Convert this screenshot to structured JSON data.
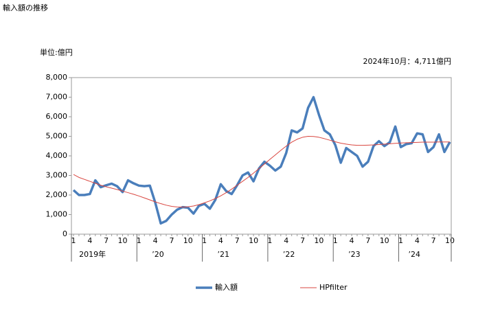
{
  "chart_data": {
    "type": "line",
    "title": "輸入額の推移",
    "unit_label": "単位:億円",
    "annotation": "2024年10月：4,711億円",
    "categories": [
      "1",
      null,
      null,
      "4",
      null,
      null,
      "7",
      null,
      null,
      "10",
      null,
      null,
      "1",
      null,
      null,
      "4",
      null,
      null,
      "7",
      null,
      null,
      "10",
      null,
      null,
      "1",
      null,
      null,
      "4",
      null,
      null,
      "7",
      null,
      null,
      "10",
      null,
      null,
      "1",
      null,
      null,
      "4",
      null,
      null,
      "7",
      null,
      null,
      "10",
      null,
      null,
      "1",
      null,
      null,
      "4",
      null,
      null,
      "7",
      null,
      null,
      "10",
      null,
      null,
      "1",
      null,
      null,
      "4",
      null,
      null,
      "7",
      null,
      null,
      "10"
    ],
    "years": [
      "2019年",
      "’20",
      "’21",
      "’22",
      "’23",
      "’24"
    ],
    "ylim": [
      0,
      8000
    ],
    "yticks": [
      0,
      {
        "value": 1000,
        "label": "1,000"
      },
      {
        "value": 2000,
        "label": "2,000"
      },
      {
        "value": 3000,
        "label": "3,000"
      },
      {
        "value": 4000,
        "label": "4,000"
      },
      {
        "value": 5000,
        "label": "5,000"
      },
      {
        "value": 6000,
        "label": "6,000"
      },
      {
        "value": 7000,
        "label": "7,000"
      },
      {
        "value": 8000,
        "label": "8,000"
      }
    ],
    "series": [
      {
        "name": "輸入額",
        "color": "#4a7ebb",
        "width": 3.5,
        "values": [
          2250,
          2000,
          2000,
          2050,
          2750,
          2400,
          2500,
          2580,
          2450,
          2150,
          2750,
          2600,
          2480,
          2450,
          2480,
          1600,
          550,
          680,
          1000,
          1250,
          1380,
          1350,
          1050,
          1450,
          1550,
          1300,
          1750,
          2550,
          2200,
          2050,
          2500,
          3000,
          3150,
          2700,
          3350,
          3700,
          3500,
          3250,
          3450,
          4150,
          5300,
          5200,
          5400,
          6450,
          7000,
          6100,
          5300,
          5100,
          4550,
          3650,
          4400,
          4200,
          4000,
          3450,
          3700,
          4500,
          4750,
          4500,
          4700,
          5500,
          4450,
          4600,
          4650,
          5150,
          5100,
          4200,
          4450,
          5100,
          4200,
          4711
        ]
      },
      {
        "name": "HPfilter",
        "color": "#d9453f",
        "width": 1,
        "values": [
          3050,
          2900,
          2800,
          2700,
          2600,
          2500,
          2420,
          2350,
          2280,
          2200,
          2120,
          2040,
          1950,
          1850,
          1750,
          1650,
          1560,
          1480,
          1420,
          1390,
          1380,
          1400,
          1440,
          1510,
          1600,
          1700,
          1820,
          1960,
          2120,
          2300,
          2500,
          2700,
          2900,
          3120,
          3350,
          3580,
          3820,
          4050,
          4280,
          4500,
          4700,
          4850,
          4950,
          5000,
          4990,
          4950,
          4880,
          4800,
          4720,
          4650,
          4600,
          4560,
          4540,
          4540,
          4550,
          4560,
          4580,
          4600,
          4620,
          4640,
          4660,
          4670,
          4680,
          4690,
          4700,
          4700,
          4700,
          4710,
          4710,
          4710
        ]
      }
    ]
  }
}
